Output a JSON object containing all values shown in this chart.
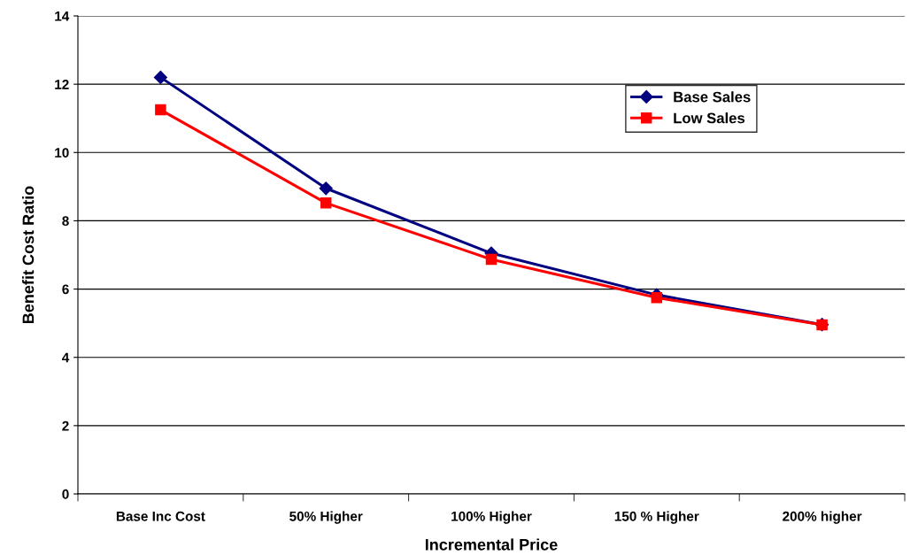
{
  "chart_data": {
    "type": "line",
    "xlabel": "Incremental Price",
    "ylabel": "Benefit Cost Ratio",
    "categories": [
      "Base Inc Cost",
      "50% Higher",
      "100% Higher",
      "150 % Higher",
      "200% higher"
    ],
    "series": [
      {
        "name": "Base Sales",
        "color": "#000080",
        "marker": "diamond",
        "values": [
          12.2,
          8.95,
          7.05,
          5.83,
          4.96
        ]
      },
      {
        "name": "Low Sales",
        "color": "#ff0000",
        "marker": "square",
        "values": [
          11.25,
          8.52,
          6.87,
          5.75,
          4.95
        ]
      }
    ],
    "ylim": [
      0,
      14
    ],
    "yticks": [
      0,
      2,
      4,
      6,
      8,
      10,
      12,
      14
    ],
    "grid": "y",
    "legend": "top right",
    "line_style": "solid"
  }
}
